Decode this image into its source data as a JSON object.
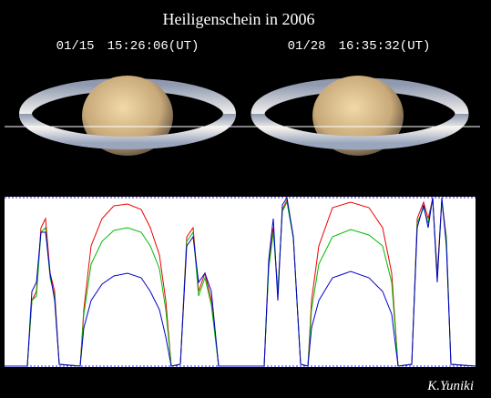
{
  "header": {
    "title": "Heiligenschein in 2006"
  },
  "images": [
    {
      "label": "01/15　15:26:06(UT)"
    },
    {
      "label": "01/28　16:35:32(UT)"
    }
  ],
  "signature": "K.Yuniki"
}
